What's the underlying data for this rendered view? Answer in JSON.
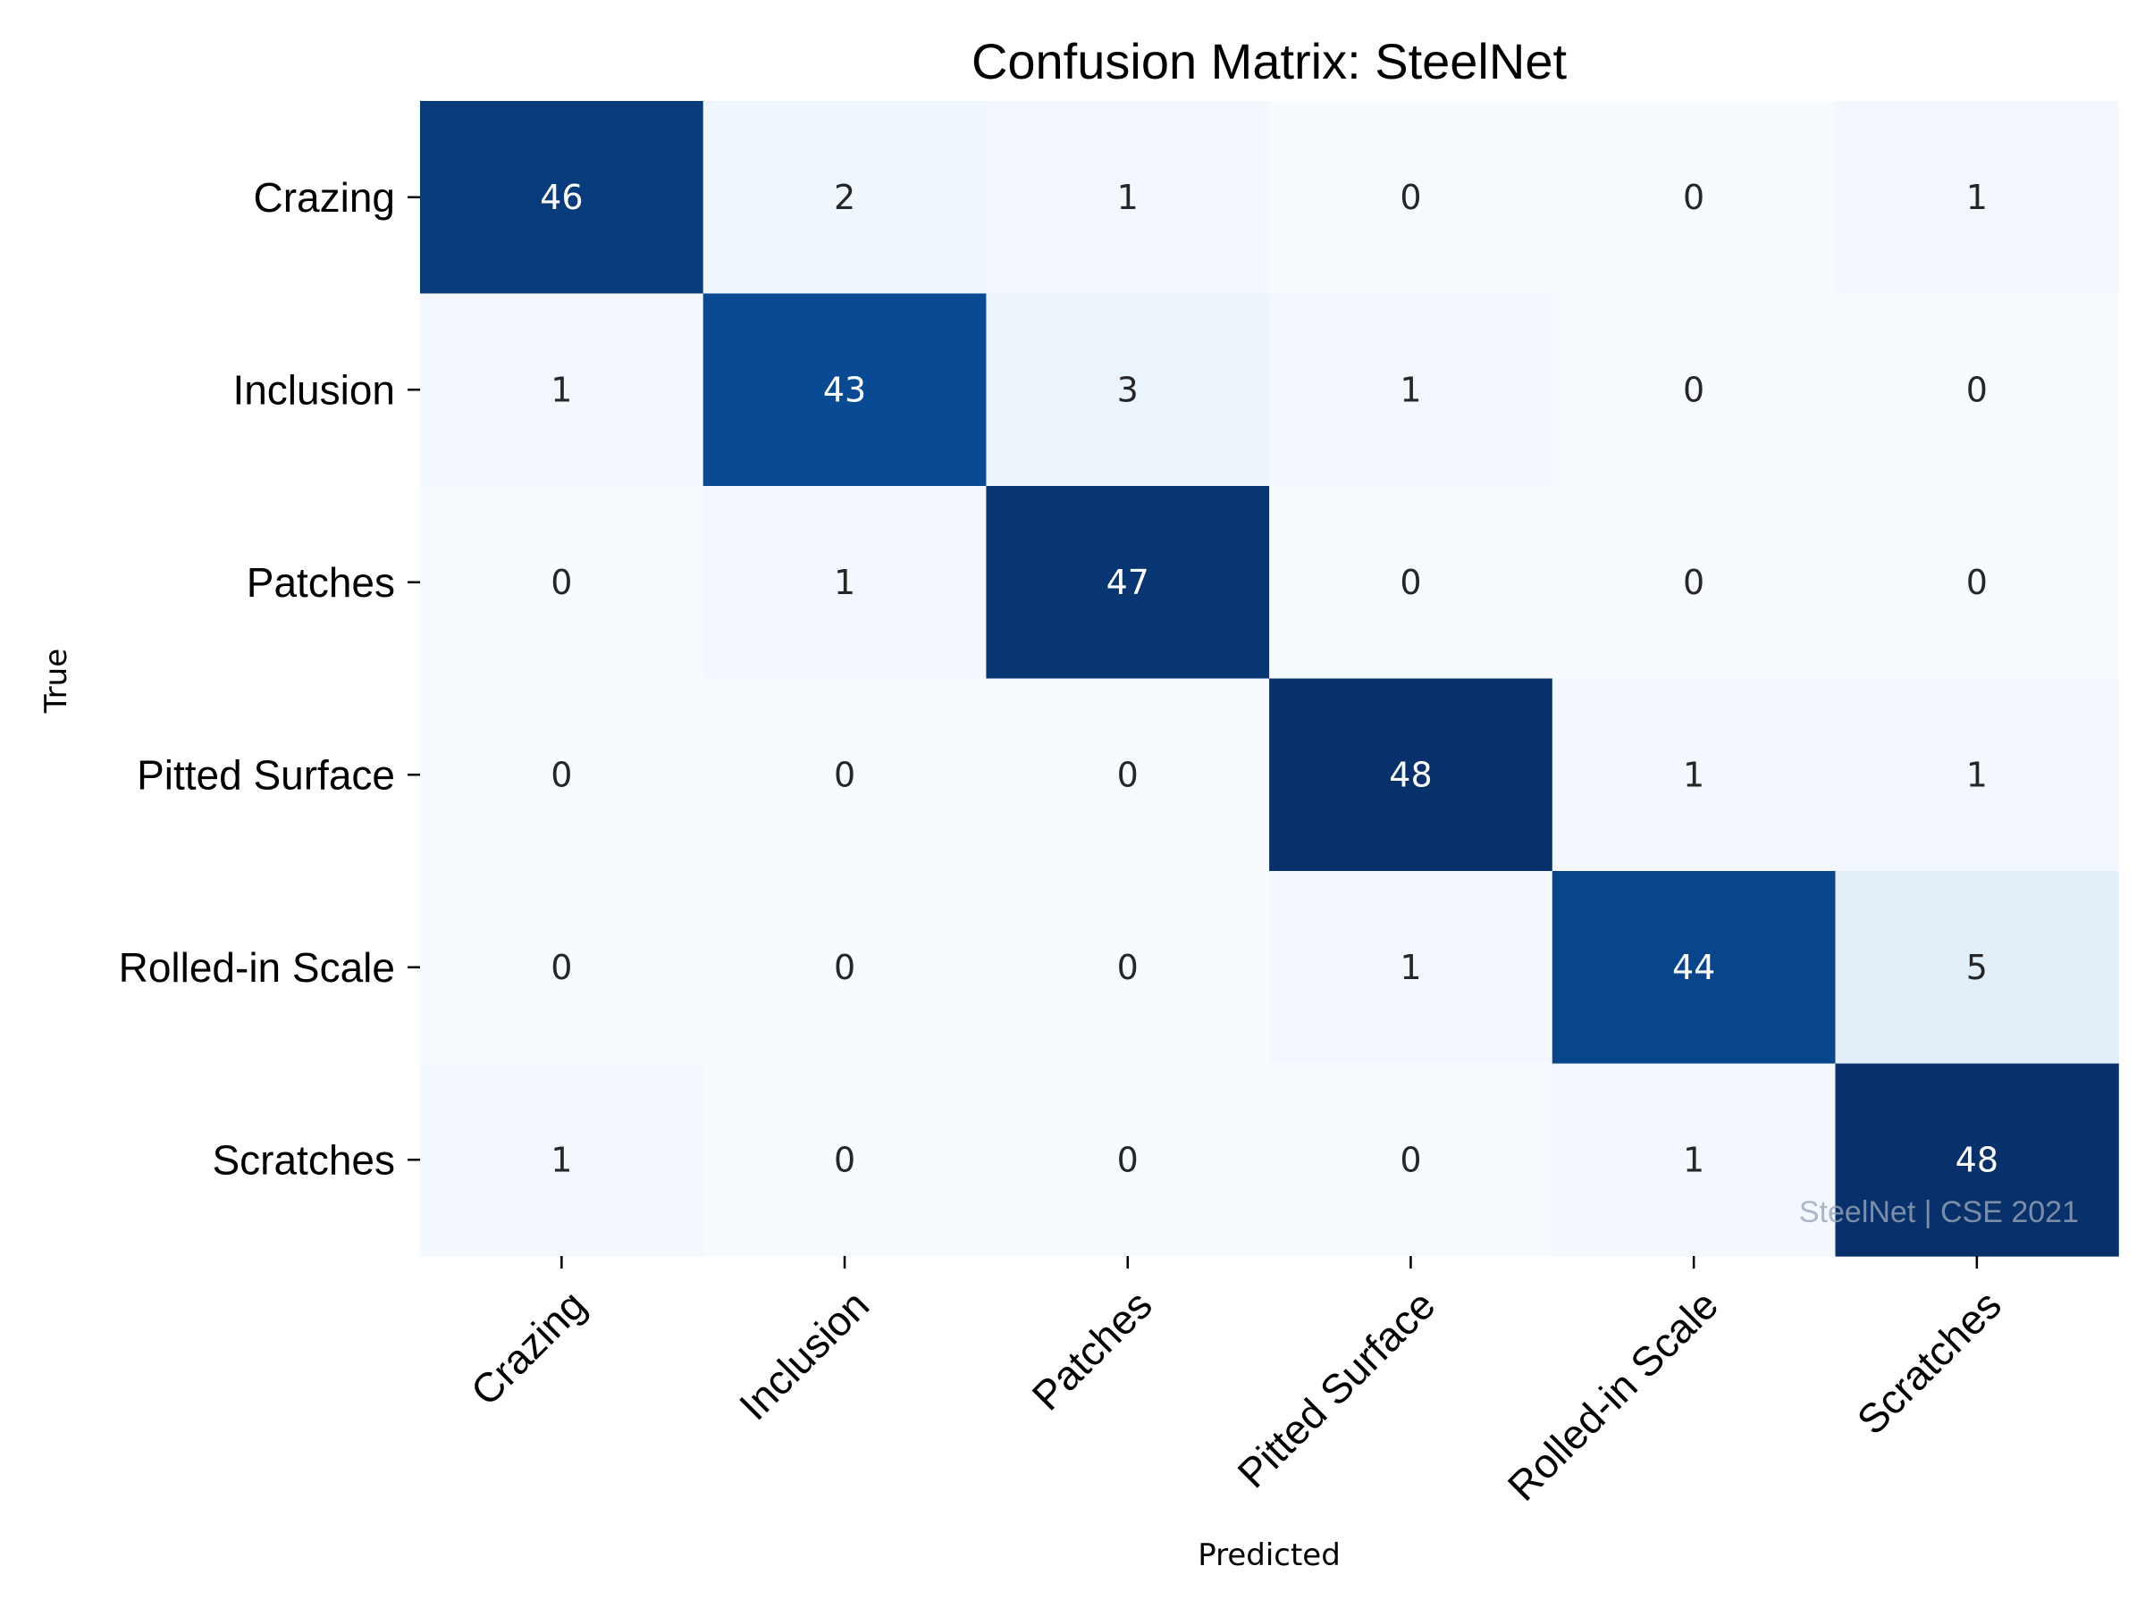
{
  "chart_data": {
    "type": "heatmap",
    "title": "Confusion Matrix: SteelNet",
    "xlabel": "Predicted",
    "ylabel": "True",
    "x_categories": [
      "Crazing",
      "Inclusion",
      "Patches",
      "Pitted Surface",
      "Rolled-in Scale",
      "Scratches"
    ],
    "y_categories": [
      "Crazing",
      "Inclusion",
      "Patches",
      "Pitted Surface",
      "Rolled-in Scale",
      "Scratches"
    ],
    "values": [
      [
        46,
        2,
        1,
        0,
        0,
        1
      ],
      [
        1,
        43,
        3,
        1,
        0,
        0
      ],
      [
        0,
        1,
        47,
        0,
        0,
        0
      ],
      [
        0,
        0,
        0,
        48,
        1,
        1
      ],
      [
        0,
        0,
        0,
        1,
        44,
        5
      ],
      [
        1,
        0,
        0,
        0,
        1,
        48
      ]
    ],
    "value_range": [
      0,
      48
    ],
    "colormap": "Blues",
    "colorbar": false,
    "watermark": "SteelNet | CSE 2021",
    "colors": {
      "text_dark": "#262626",
      "text_light": "#ffffff",
      "watermark": "#9aa6b6"
    }
  }
}
